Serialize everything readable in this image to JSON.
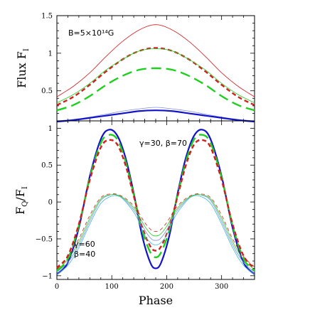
{
  "chart_data": [
    {
      "type": "line",
      "panel": "top",
      "ylabel": "Flux F",
      "ylabel_sub": "I",
      "xlim": [
        0,
        360
      ],
      "ylim": [
        0.1,
        1.5
      ],
      "yticks": [
        0.5,
        1,
        1.5
      ],
      "ytick_labels": [
        "0.5",
        "1",
        "1.5"
      ],
      "xticks": [
        0,
        100,
        200,
        300
      ],
      "annotation": "B=5×10¹⁴G",
      "colors": {
        "red": "#d21f1f",
        "green": "#1fcf1f",
        "blue": "#1313c8",
        "lightblue": "#8090e0"
      },
      "series": [
        {
          "color": "red",
          "style": "thin",
          "x": [
            0,
            30,
            60,
            90,
            120,
            150,
            180,
            210,
            240,
            270,
            300,
            330,
            360
          ],
          "y": [
            0.42,
            0.56,
            0.74,
            0.96,
            1.16,
            1.31,
            1.38,
            1.31,
            1.16,
            0.96,
            0.74,
            0.56,
            0.42
          ]
        },
        {
          "color": "red",
          "style": "thick-dash",
          "x": [
            0,
            30,
            60,
            90,
            120,
            150,
            180,
            210,
            240,
            270,
            300,
            330,
            360
          ],
          "y": [
            0.31,
            0.42,
            0.58,
            0.76,
            0.92,
            1.03,
            1.07,
            1.03,
            0.92,
            0.76,
            0.58,
            0.42,
            0.31
          ]
        },
        {
          "color": "green",
          "style": "thin",
          "x": [
            0,
            30,
            60,
            90,
            120,
            150,
            180,
            210,
            240,
            270,
            300,
            330,
            360
          ],
          "y": [
            0.34,
            0.45,
            0.6,
            0.78,
            0.92,
            1.03,
            1.06,
            1.03,
            0.92,
            0.78,
            0.6,
            0.45,
            0.34
          ]
        },
        {
          "color": "green",
          "style": "long-dash",
          "x": [
            0,
            30,
            60,
            90,
            120,
            150,
            180,
            210,
            240,
            270,
            300,
            330,
            360
          ],
          "y": [
            0.24,
            0.31,
            0.43,
            0.58,
            0.7,
            0.78,
            0.8,
            0.78,
            0.7,
            0.58,
            0.43,
            0.31,
            0.24
          ]
        },
        {
          "color": "lightblue",
          "style": "thin",
          "x": [
            0,
            30,
            60,
            90,
            120,
            150,
            180,
            210,
            240,
            270,
            300,
            330,
            360
          ],
          "y": [
            0.1,
            0.12,
            0.15,
            0.19,
            0.23,
            0.26,
            0.28,
            0.26,
            0.23,
            0.19,
            0.15,
            0.12,
            0.1
          ]
        },
        {
          "color": "blue",
          "style": "thick",
          "x": [
            0,
            30,
            60,
            90,
            120,
            150,
            180,
            210,
            240,
            270,
            300,
            330,
            360
          ],
          "y": [
            0.09,
            0.11,
            0.14,
            0.17,
            0.2,
            0.23,
            0.24,
            0.23,
            0.2,
            0.17,
            0.14,
            0.11,
            0.09
          ]
        }
      ]
    },
    {
      "type": "line",
      "panel": "bottom",
      "xlabel": "Phase",
      "ylabel": "F",
      "ylabel_sub": "Q",
      "ylabel_tail": "/F",
      "ylabel_tail_sub": "I",
      "xlim": [
        0,
        360
      ],
      "ylim": [
        -1.05,
        1.1
      ],
      "yticks": [
        -1,
        -0.5,
        0,
        0.5,
        1
      ],
      "ytick_labels": [
        "−1",
        "−0.5",
        "0",
        "0.5",
        "1"
      ],
      "xticks": [
        0,
        100,
        200,
        300
      ],
      "xtick_labels": [
        "0",
        "100",
        "200",
        "300"
      ],
      "annotations": [
        {
          "text": "γ=30, β=70"
        },
        {
          "text": "γ=60"
        },
        {
          "text": "β=40"
        }
      ],
      "colors": {
        "red": "#d21f1f",
        "green": "#1fcf1f",
        "blue": "#1313c8",
        "lightblue": "#8090e0",
        "cyan": "#40b8d8"
      },
      "series": [
        {
          "color": "blue",
          "style": "thick",
          "x": [
            0,
            20,
            40,
            60,
            80,
            95,
            110,
            125,
            140,
            155,
            170,
            180,
            190,
            205,
            220,
            235,
            250,
            265,
            280,
            300,
            320,
            340,
            360
          ],
          "y": [
            -0.98,
            -0.82,
            -0.35,
            0.35,
            0.85,
            0.98,
            0.9,
            0.6,
            0.12,
            -0.45,
            -0.82,
            -0.9,
            -0.82,
            -0.45,
            0.12,
            0.6,
            0.9,
            0.98,
            0.85,
            0.35,
            -0.35,
            -0.82,
            -0.98
          ]
        },
        {
          "color": "green",
          "style": "long-dash",
          "x": [
            0,
            20,
            40,
            60,
            80,
            95,
            110,
            125,
            140,
            155,
            170,
            180,
            190,
            205,
            220,
            235,
            250,
            265,
            280,
            300,
            320,
            340,
            360
          ],
          "y": [
            -0.94,
            -0.77,
            -0.32,
            0.33,
            0.8,
            0.91,
            0.85,
            0.55,
            0.1,
            -0.38,
            -0.68,
            -0.75,
            -0.68,
            -0.38,
            0.1,
            0.55,
            0.85,
            0.91,
            0.8,
            0.33,
            -0.32,
            -0.77,
            -0.94
          ]
        },
        {
          "color": "red",
          "style": "thick-dash",
          "x": [
            0,
            20,
            40,
            60,
            80,
            95,
            110,
            125,
            140,
            155,
            170,
            180,
            190,
            205,
            220,
            235,
            250,
            265,
            280,
            300,
            320,
            340,
            360
          ],
          "y": [
            -0.9,
            -0.73,
            -0.3,
            0.3,
            0.74,
            0.84,
            0.78,
            0.5,
            0.08,
            -0.33,
            -0.6,
            -0.66,
            -0.6,
            -0.33,
            0.08,
            0.5,
            0.78,
            0.84,
            0.74,
            0.3,
            -0.3,
            -0.73,
            -0.9
          ]
        },
        {
          "color": "cyan",
          "style": "thin",
          "x": [
            0,
            20,
            40,
            60,
            80,
            100,
            115,
            130,
            145,
            160,
            172,
            180,
            188,
            200,
            215,
            230,
            245,
            260,
            280,
            300,
            320,
            340,
            360
          ],
          "y": [
            -0.98,
            -0.86,
            -0.62,
            -0.3,
            -0.02,
            0.08,
            0.07,
            -0.04,
            -0.2,
            -0.45,
            -0.56,
            -0.58,
            -0.56,
            -0.45,
            -0.2,
            -0.04,
            0.07,
            0.08,
            -0.02,
            -0.3,
            -0.62,
            -0.86,
            -0.98
          ]
        },
        {
          "color": "lightblue",
          "style": "thin",
          "x": [
            0,
            20,
            40,
            60,
            80,
            100,
            115,
            130,
            145,
            160,
            172,
            180,
            188,
            200,
            215,
            230,
            245,
            260,
            280,
            300,
            320,
            340,
            360
          ],
          "y": [
            -0.95,
            -0.82,
            -0.58,
            -0.26,
            0.02,
            0.1,
            0.08,
            -0.02,
            -0.16,
            -0.38,
            -0.5,
            -0.52,
            -0.5,
            -0.38,
            -0.16,
            -0.02,
            0.08,
            0.1,
            0.02,
            -0.26,
            -0.58,
            -0.82,
            -0.95
          ]
        },
        {
          "color": "green",
          "style": "thin",
          "x": [
            0,
            20,
            40,
            60,
            80,
            100,
            115,
            130,
            145,
            160,
            172,
            180,
            188,
            200,
            215,
            230,
            245,
            260,
            280,
            300,
            320,
            340,
            360
          ],
          "y": [
            -0.92,
            -0.78,
            -0.54,
            -0.22,
            0.04,
            0.1,
            0.08,
            0.0,
            -0.13,
            -0.33,
            -0.44,
            -0.46,
            -0.44,
            -0.33,
            -0.13,
            0.0,
            0.08,
            0.1,
            0.04,
            -0.22,
            -0.54,
            -0.78,
            -0.92
          ]
        },
        {
          "color": "red",
          "style": "thin-dash",
          "x": [
            0,
            20,
            40,
            60,
            80,
            100,
            115,
            130,
            145,
            160,
            172,
            180,
            188,
            200,
            215,
            230,
            245,
            260,
            280,
            300,
            320,
            340,
            360
          ],
          "y": [
            -0.88,
            -0.74,
            -0.5,
            -0.18,
            0.06,
            0.11,
            0.09,
            0.02,
            -0.1,
            -0.28,
            -0.38,
            -0.4,
            -0.38,
            -0.28,
            -0.1,
            0.02,
            0.09,
            0.11,
            0.06,
            -0.18,
            -0.5,
            -0.74,
            -0.88
          ]
        }
      ]
    }
  ]
}
